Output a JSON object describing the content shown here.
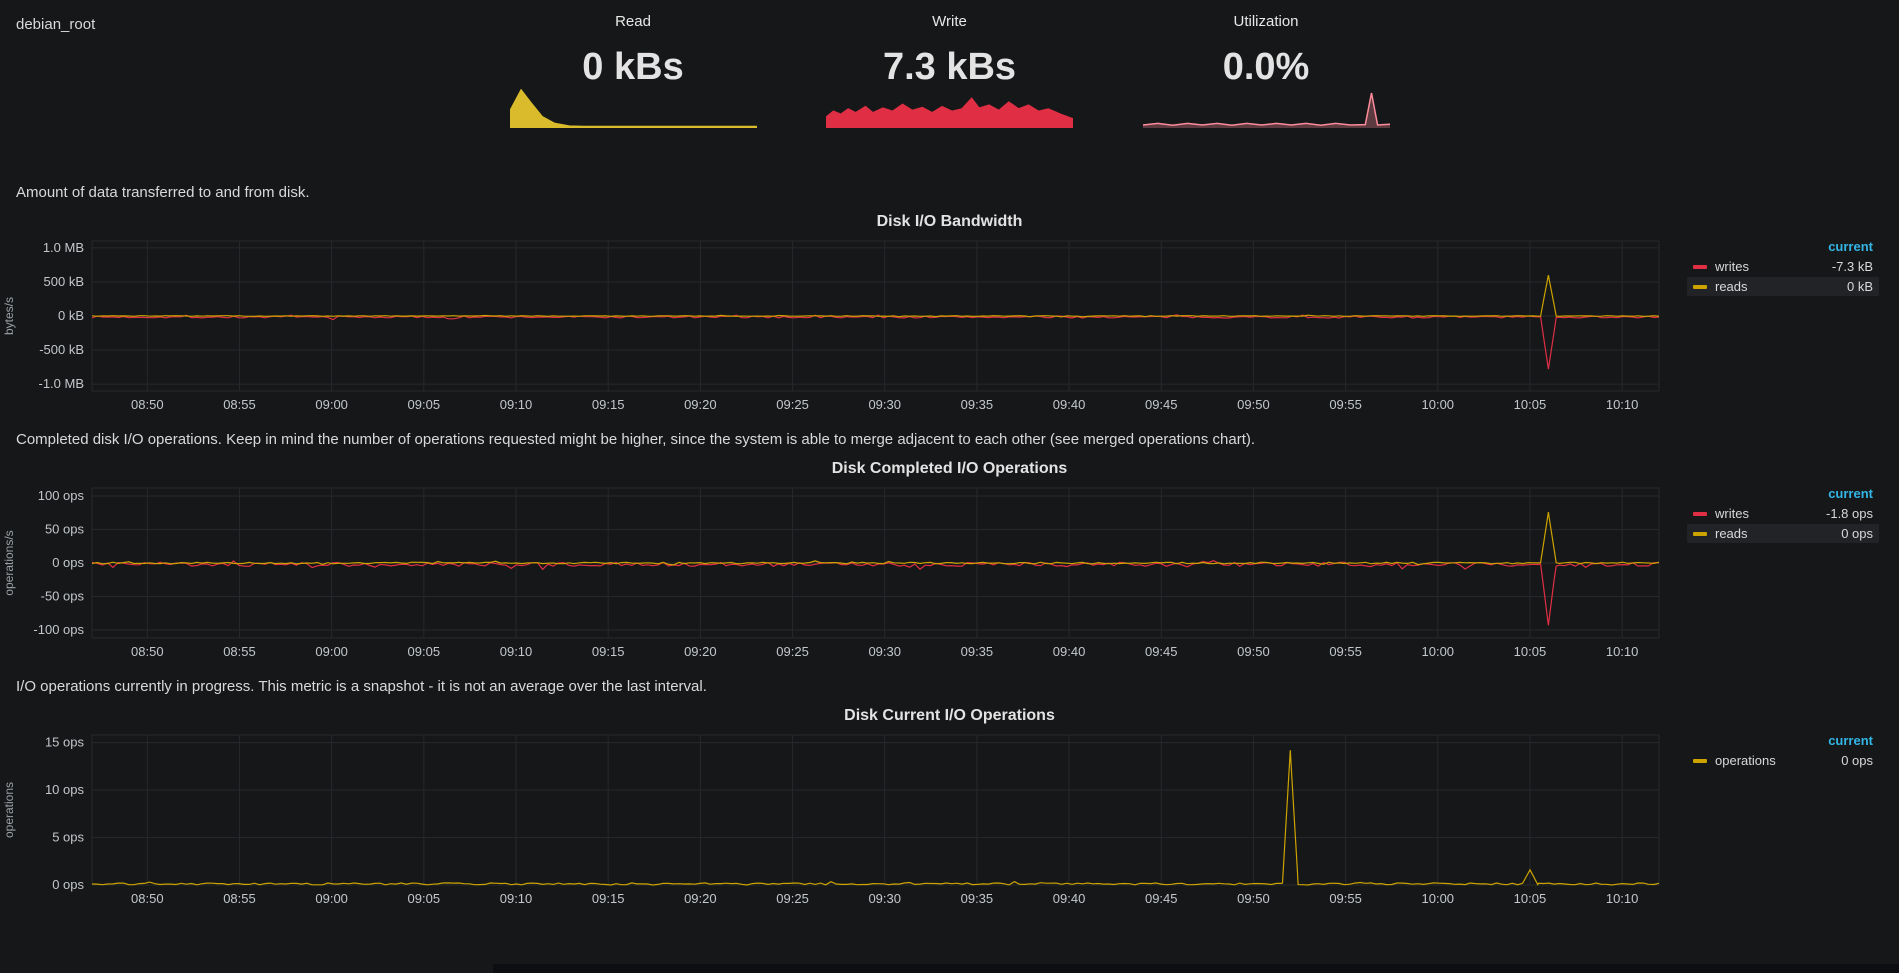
{
  "header": {
    "title": "debian_root"
  },
  "colors": {
    "background": "#161719",
    "text": "#d8d9da",
    "tick_text": "#c3c7cb",
    "unit_text": "#9aa0a6",
    "grid": "#26282c",
    "legend_current": "#33b5e5",
    "read_yellow": "#d9bb2c",
    "chart_yellow": "#cca300",
    "write_red": "#e02f44",
    "utilization_pink": "#ff8c9b"
  },
  "stats": [
    {
      "label": "Read",
      "value": "0 kBs",
      "spark_color": "#d9bb2c",
      "spark_fill_opacity": 1,
      "spark_points": [
        [
          0,
          0.45
        ],
        [
          0.045,
          1.0
        ],
        [
          0.09,
          0.62
        ],
        [
          0.13,
          0.3
        ],
        [
          0.18,
          0.12
        ],
        [
          0.24,
          0.05
        ],
        [
          0.3,
          0.04
        ],
        [
          1,
          0.04
        ]
      ]
    },
    {
      "label": "Write",
      "value": "7.3 kBs",
      "spark_color": "#e02f44",
      "spark_fill_opacity": 1,
      "spark_points": [
        [
          0,
          0.28
        ],
        [
          0.03,
          0.44
        ],
        [
          0.06,
          0.36
        ],
        [
          0.09,
          0.5
        ],
        [
          0.12,
          0.4
        ],
        [
          0.16,
          0.56
        ],
        [
          0.19,
          0.4
        ],
        [
          0.23,
          0.52
        ],
        [
          0.27,
          0.44
        ],
        [
          0.31,
          0.62
        ],
        [
          0.35,
          0.46
        ],
        [
          0.39,
          0.54
        ],
        [
          0.43,
          0.4
        ],
        [
          0.47,
          0.56
        ],
        [
          0.51,
          0.44
        ],
        [
          0.55,
          0.5
        ],
        [
          0.59,
          0.78
        ],
        [
          0.62,
          0.52
        ],
        [
          0.66,
          0.6
        ],
        [
          0.7,
          0.46
        ],
        [
          0.74,
          0.68
        ],
        [
          0.78,
          0.5
        ],
        [
          0.82,
          0.6
        ],
        [
          0.86,
          0.44
        ],
        [
          0.9,
          0.5
        ],
        [
          0.95,
          0.36
        ],
        [
          1,
          0.24
        ]
      ]
    },
    {
      "label": "Utilization",
      "value": "0.0%",
      "spark_color": "#ff8c9b",
      "spark_fill_opacity": 0.3,
      "spark_points": [
        [
          0,
          0.08
        ],
        [
          0.06,
          0.12
        ],
        [
          0.12,
          0.07
        ],
        [
          0.18,
          0.12
        ],
        [
          0.24,
          0.08
        ],
        [
          0.3,
          0.12
        ],
        [
          0.36,
          0.07
        ],
        [
          0.42,
          0.12
        ],
        [
          0.48,
          0.08
        ],
        [
          0.54,
          0.12
        ],
        [
          0.6,
          0.08
        ],
        [
          0.66,
          0.12
        ],
        [
          0.72,
          0.07
        ],
        [
          0.78,
          0.12
        ],
        [
          0.84,
          0.08
        ],
        [
          0.9,
          0.09
        ],
        [
          0.925,
          0.92
        ],
        [
          0.95,
          0.08
        ],
        [
          1,
          0.1
        ]
      ]
    }
  ],
  "descriptions": [
    "Amount of data transferred to and from disk.",
    "Completed disk I/O operations. Keep in mind the number of operations requested might be higher, since the system is able to merge adjacent to each other (see merged operations chart).",
    "I/O operations currently in progress. This metric is a snapshot - it is not an average over the last interval."
  ],
  "chart_data": [
    {
      "type": "line",
      "title": "Disk I/O Bandwidth",
      "ylabel": "bytes/s",
      "x_start": "08:47",
      "x_end": "10:12",
      "xticks": [
        "08:50",
        "08:55",
        "09:00",
        "09:05",
        "09:10",
        "09:15",
        "09:20",
        "09:25",
        "09:30",
        "09:35",
        "09:40",
        "09:45",
        "09:50",
        "09:55",
        "10:00",
        "10:05",
        "10:10"
      ],
      "yticks": [
        {
          "label": "1.0 MB",
          "value": 1000000
        },
        {
          "label": "500 kB",
          "value": 500000
        },
        {
          "label": "0 kB",
          "value": 0
        },
        {
          "label": "-500 kB",
          "value": -500000
        },
        {
          "label": "-1.0 MB",
          "value": -1000000
        }
      ],
      "ymin": -1100000,
      "ymax": 1100000,
      "legend_header": "current",
      "series": [
        {
          "name": "writes",
          "color": "#e02f44",
          "current_label": "-7.3 kB",
          "baseline": -15000,
          "noise": 15000,
          "spikes": [
            {
              "time": "10:06",
              "value": -780000
            }
          ],
          "highlighted": false
        },
        {
          "name": "reads",
          "color": "#cca300",
          "current_label": "0 kB",
          "baseline": 0,
          "noise": 5000,
          "spikes": [
            {
              "time": "10:06",
              "value": 600000
            }
          ],
          "highlighted": true
        }
      ]
    },
    {
      "type": "line",
      "title": "Disk Completed I/O Operations",
      "ylabel": "operations/s",
      "x_start": "08:47",
      "x_end": "10:12",
      "xticks": [
        "08:50",
        "08:55",
        "09:00",
        "09:05",
        "09:10",
        "09:15",
        "09:20",
        "09:25",
        "09:30",
        "09:35",
        "09:40",
        "09:45",
        "09:50",
        "09:55",
        "10:00",
        "10:05",
        "10:10"
      ],
      "yticks": [
        {
          "label": "100 ops",
          "value": 100
        },
        {
          "label": "50 ops",
          "value": 50
        },
        {
          "label": "0 ops",
          "value": 0
        },
        {
          "label": "-50 ops",
          "value": -50
        },
        {
          "label": "-100 ops",
          "value": -100
        }
      ],
      "ymin": -112,
      "ymax": 112,
      "legend_header": "current",
      "series": [
        {
          "name": "writes",
          "color": "#e02f44",
          "current_label": "-1.8 ops",
          "baseline": -2,
          "noise": 3,
          "spikes": [
            {
              "time": "10:06",
              "value": -93
            }
          ],
          "highlighted": false
        },
        {
          "name": "reads",
          "color": "#cca300",
          "current_label": "0 ops",
          "baseline": 0,
          "noise": 1.2,
          "spikes": [
            {
              "time": "10:06",
              "value": 76
            }
          ],
          "highlighted": true
        }
      ]
    },
    {
      "type": "line",
      "title": "Disk Current I/O Operations",
      "ylabel": "operations",
      "x_start": "08:47",
      "x_end": "10:12",
      "xticks": [
        "08:50",
        "08:55",
        "09:00",
        "09:05",
        "09:10",
        "09:15",
        "09:20",
        "09:25",
        "09:30",
        "09:35",
        "09:40",
        "09:45",
        "09:50",
        "09:55",
        "10:00",
        "10:05",
        "10:10"
      ],
      "yticks": [
        {
          "label": "15 ops",
          "value": 15
        },
        {
          "label": "10 ops",
          "value": 10
        },
        {
          "label": "5 ops",
          "value": 5
        },
        {
          "label": "0 ops",
          "value": 0
        }
      ],
      "ymin": 0,
      "ymax": 15.8,
      "legend_header": "current",
      "series": [
        {
          "name": "operations",
          "color": "#cca300",
          "current_label": "0 ops",
          "baseline": 0.12,
          "noise": 0.1,
          "spikes": [
            {
              "time": "09:52",
              "value": 14.2
            },
            {
              "time": "10:05",
              "value": 1.6
            }
          ],
          "highlighted": false
        }
      ]
    }
  ]
}
